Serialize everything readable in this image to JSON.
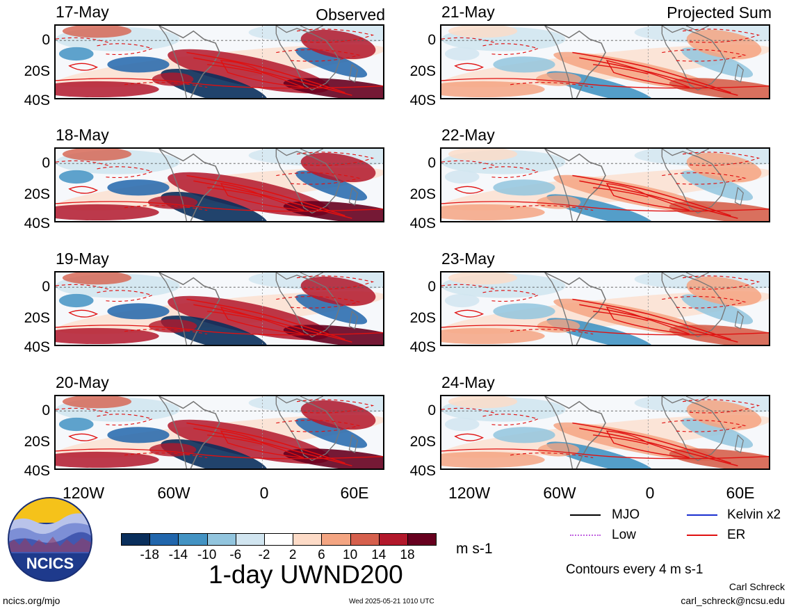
{
  "header": {
    "left_label": "Observed",
    "right_label": "Projected Sum"
  },
  "panels": [
    {
      "date": "17-May",
      "column": "observed"
    },
    {
      "date": "18-May",
      "column": "observed"
    },
    {
      "date": "19-May",
      "column": "observed"
    },
    {
      "date": "20-May",
      "column": "observed"
    },
    {
      "date": "21-May",
      "column": "projected"
    },
    {
      "date": "22-May",
      "column": "projected"
    },
    {
      "date": "23-May",
      "column": "projected"
    },
    {
      "date": "24-May",
      "column": "projected"
    }
  ],
  "axes": {
    "y_ticks": [
      "0",
      "20S",
      "40S"
    ],
    "x_ticks": [
      "120W",
      "60W",
      "0",
      "60E"
    ]
  },
  "colorbar": {
    "labels": [
      "-18",
      "-14",
      "-10",
      "-6",
      "-2",
      "2",
      "6",
      "10",
      "14",
      "18"
    ],
    "colors": [
      "#0a2f5c",
      "#2166ac",
      "#4393c3",
      "#92c5de",
      "#d1e5f0",
      "#ffffff",
      "#fddbc7",
      "#f4a582",
      "#d6604d",
      "#b2182b",
      "#67001f"
    ],
    "units": "m s-1"
  },
  "title": "1-day UWND200",
  "legend": {
    "items": [
      {
        "label": "MJO",
        "color": "#000000"
      },
      {
        "label": "Kelvin x2",
        "color": "#1a2fd0"
      },
      {
        "label": "Low",
        "color": "#c060e0"
      },
      {
        "label": "ER",
        "color": "#e01010"
      }
    ],
    "contour_note": "Contours every 4 m s-1"
  },
  "footer": {
    "website": "ncics.org/mjo",
    "timestamp": "Wed 2025-05-21 1010 UTC",
    "author": "Carl Schreck",
    "email": "carl_schreck@ncsu.edu"
  },
  "logo": {
    "text": "NCICS"
  }
}
